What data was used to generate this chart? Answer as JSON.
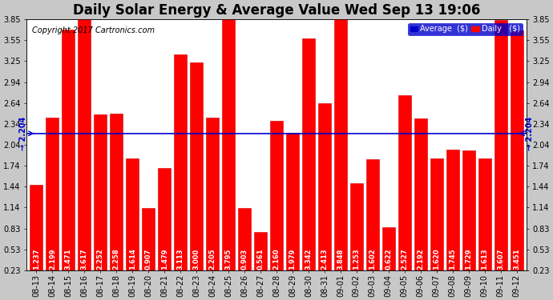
{
  "title": "Daily Solar Energy & Average Value Wed Sep 13 19:06",
  "copyright": "Copyright 2017 Cartronics.com",
  "categories": [
    "08-13",
    "08-14",
    "08-15",
    "08-16",
    "08-17",
    "08-18",
    "08-19",
    "08-20",
    "08-21",
    "08-22",
    "08-23",
    "08-24",
    "08-25",
    "08-26",
    "08-27",
    "08-28",
    "08-29",
    "08-30",
    "08-31",
    "09-01",
    "09-02",
    "09-03",
    "09-04",
    "09-05",
    "09-06",
    "09-07",
    "09-08",
    "09-09",
    "09-10",
    "09-11",
    "09-12"
  ],
  "values": [
    1.237,
    2.199,
    3.471,
    3.617,
    2.252,
    2.258,
    1.614,
    0.907,
    1.479,
    3.113,
    3.0,
    2.205,
    3.795,
    0.903,
    0.561,
    2.16,
    1.979,
    3.342,
    2.413,
    3.848,
    1.253,
    1.602,
    0.622,
    2.527,
    2.192,
    1.62,
    1.745,
    1.729,
    1.613,
    3.607,
    3.451
  ],
  "average": 2.204,
  "bar_color": "#ff0000",
  "avg_line_color": "#0000cc",
  "background_color": "#c8c8c8",
  "plot_bg_color": "#ffffff",
  "grid_color": "#cccccc",
  "title_color": "#000000",
  "ylim_min": 0.23,
  "ylim_max": 3.85,
  "yticks": [
    0.23,
    0.53,
    0.83,
    1.14,
    1.44,
    1.74,
    2.04,
    2.34,
    2.64,
    2.94,
    3.25,
    3.55,
    3.85
  ],
  "avg_label": "2.204",
  "title_fontsize": 12,
  "copyright_fontsize": 7,
  "tick_fontsize": 7,
  "bar_label_fontsize": 6
}
